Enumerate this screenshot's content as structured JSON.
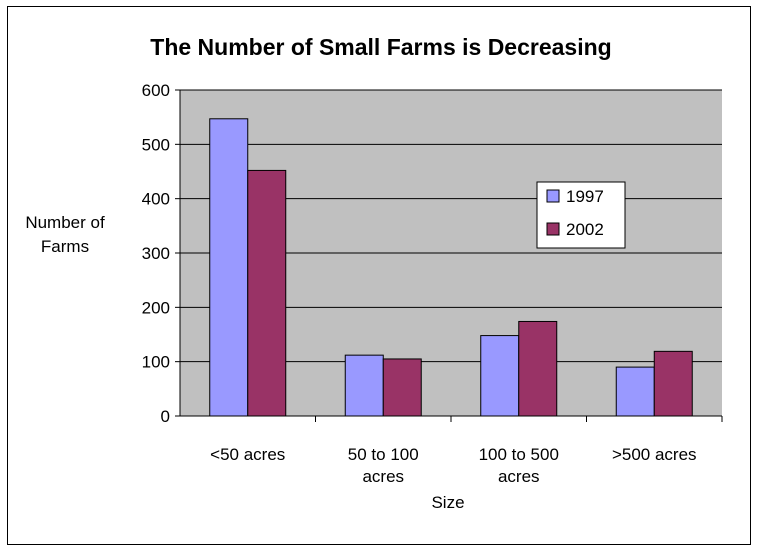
{
  "chart_data": {
    "type": "bar",
    "title": "The Number of Small Farms is Decreasing",
    "xlabel": "Size",
    "ylabel_lines": [
      "Number of",
      "Farms"
    ],
    "categories": [
      {
        "lines": [
          "<50 acres"
        ]
      },
      {
        "lines": [
          "50 to 100",
          "acres"
        ]
      },
      {
        "lines": [
          "100 to 500",
          "acres"
        ]
      },
      {
        "lines": [
          ">500 acres"
        ]
      }
    ],
    "series": [
      {
        "name": "1997",
        "color": "#9999ff",
        "values": [
          547,
          112,
          148,
          90
        ]
      },
      {
        "name": "2002",
        "color": "#993366",
        "values": [
          452,
          105,
          174,
          119
        ]
      }
    ],
    "ylim": [
      0,
      600
    ],
    "yticks": [
      0,
      100,
      200,
      300,
      400,
      500,
      600
    ],
    "grid": true,
    "plot_background": "#c0c0c0",
    "legend_position": "right-inside"
  }
}
